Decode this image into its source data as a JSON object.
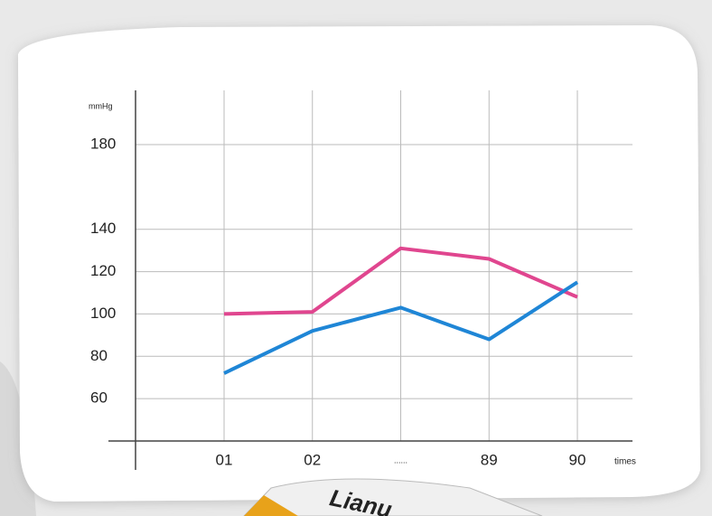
{
  "chart_data": {
    "type": "line",
    "y_label": "mmHg",
    "x_label": "times",
    "categories": [
      "01",
      "02",
      "......",
      "89",
      "90"
    ],
    "series": [
      {
        "color": "#e0468f",
        "values": [
          100,
          101,
          131,
          126,
          108
        ]
      },
      {
        "color": "#1f86d6",
        "values": [
          72,
          92,
          103,
          88,
          115
        ]
      }
    ],
    "ylim": [
      40,
      180
    ],
    "yticks": [
      60,
      80,
      100,
      120,
      140,
      180
    ],
    "grid": true
  },
  "product_label": "Lianu"
}
